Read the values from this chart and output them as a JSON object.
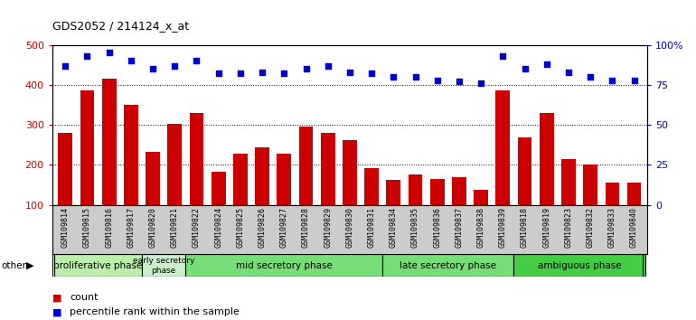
{
  "title": "GDS2052 / 214124_x_at",
  "samples": [
    "GSM109814",
    "GSM109815",
    "GSM109816",
    "GSM109817",
    "GSM109820",
    "GSM109821",
    "GSM109822",
    "GSM109824",
    "GSM109825",
    "GSM109826",
    "GSM109827",
    "GSM109828",
    "GSM109829",
    "GSM109830",
    "GSM109831",
    "GSM109834",
    "GSM109835",
    "GSM109836",
    "GSM109837",
    "GSM109838",
    "GSM109839",
    "GSM109818",
    "GSM109819",
    "GSM109823",
    "GSM109832",
    "GSM109833",
    "GSM109840"
  ],
  "counts": [
    280,
    385,
    415,
    350,
    232,
    302,
    330,
    182,
    228,
    243,
    228,
    295,
    280,
    262,
    192,
    163,
    175,
    165,
    170,
    138,
    385,
    268,
    330,
    215,
    200,
    155,
    155
  ],
  "percentile": [
    87,
    93,
    95,
    90,
    85,
    87,
    90,
    82,
    82,
    83,
    82,
    85,
    87,
    83,
    82,
    80,
    80,
    78,
    77,
    76,
    93,
    85,
    88,
    83,
    80,
    78,
    78
  ],
  "bar_color": "#cc0000",
  "dot_color": "#0000cc",
  "ylim_left": [
    100,
    500
  ],
  "ylim_right": [
    0,
    100
  ],
  "yticks_left": [
    100,
    200,
    300,
    400,
    500
  ],
  "yticks_right": [
    0,
    25,
    50,
    75,
    100
  ],
  "ytick_labels_right": [
    "0",
    "25",
    "50",
    "75",
    "100%"
  ],
  "phase_data": [
    {
      "label": "proliferative phase",
      "start": 0,
      "end": 4,
      "color": "#bbeeaa"
    },
    {
      "label": "early secretory\nphase",
      "start": 4,
      "end": 6,
      "color": "#cceecc"
    },
    {
      "label": "mid secretory phase",
      "start": 6,
      "end": 15,
      "color": "#77dd77"
    },
    {
      "label": "late secretory phase",
      "start": 15,
      "end": 21,
      "color": "#77dd77"
    },
    {
      "label": "ambiguous phase",
      "start": 21,
      "end": 27,
      "color": "#44cc44"
    }
  ],
  "legend_bar_label": "count",
  "legend_dot_label": "percentile rank within the sample",
  "other_label": "other",
  "tick_bg_color": "#cccccc",
  "plot_bg_color": "#ffffff"
}
